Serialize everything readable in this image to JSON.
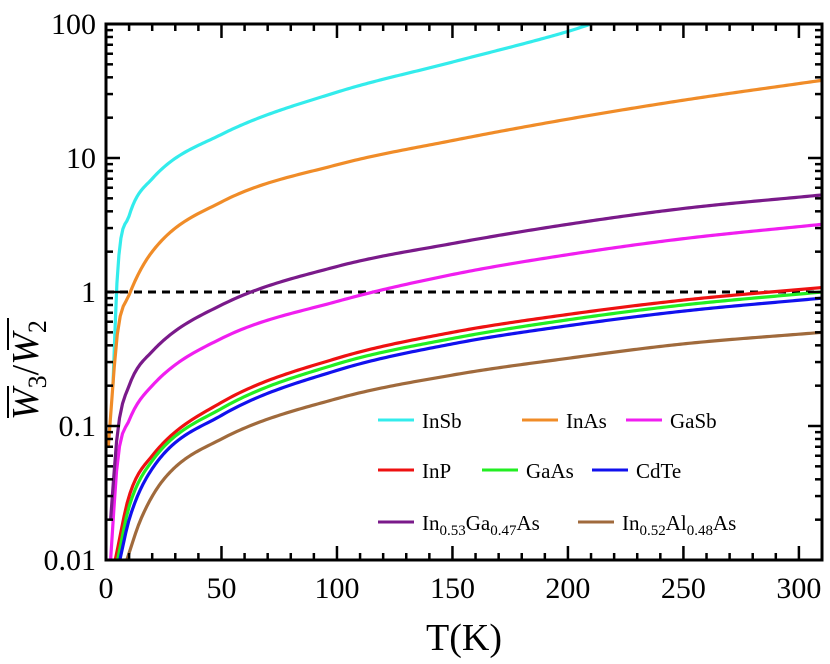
{
  "chart_data": {
    "type": "line",
    "scale": "log-y",
    "xlabel": "T(K)",
    "ylabel": {
      "numerator": "W",
      "numerator_sub": "3",
      "separator": "/",
      "denominator": "W",
      "denominator_sub": "2"
    },
    "xlim": [
      0,
      310
    ],
    "ylim": [
      0.01,
      100
    ],
    "x_ticks": [
      0,
      50,
      100,
      150,
      200,
      250,
      300
    ],
    "x_tick_labels": [
      "0",
      "50",
      "100",
      "150",
      "200",
      "250",
      "300"
    ],
    "y_ticks": [
      0.01,
      0.1,
      1,
      10,
      100
    ],
    "y_tick_labels": [
      "0.01",
      "0.1",
      "1",
      "10",
      "100"
    ],
    "reference_line": {
      "y": 1,
      "style": "dashed",
      "color": "#000000"
    },
    "legend_position": "bottom-right",
    "series": [
      {
        "name": "InSb",
        "color": "#33ecec",
        "points": [
          [
            3,
            0.2
          ],
          [
            5,
            1.4
          ],
          [
            10,
            3.7
          ],
          [
            20,
            7.0
          ],
          [
            50,
            15
          ],
          [
            100,
            31
          ],
          [
            150,
            52
          ],
          [
            200,
            88
          ],
          [
            210,
            100
          ]
        ]
      },
      {
        "name": "InAs",
        "color": "#f08c28",
        "points": [
          [
            1,
            0.07
          ],
          [
            5,
            0.5
          ],
          [
            10,
            0.95
          ],
          [
            20,
            2.0
          ],
          [
            50,
            4.7
          ],
          [
            100,
            8.9
          ],
          [
            150,
            13.5
          ],
          [
            200,
            19.5
          ],
          [
            250,
            27
          ],
          [
            310,
            38
          ]
        ]
      },
      {
        "name": "GaSb",
        "color": "#f01ef0",
        "points": [
          [
            2,
            0.01
          ],
          [
            5,
            0.055
          ],
          [
            10,
            0.11
          ],
          [
            20,
            0.2
          ],
          [
            50,
            0.45
          ],
          [
            100,
            0.85
          ],
          [
            150,
            1.35
          ],
          [
            200,
            1.9
          ],
          [
            250,
            2.5
          ],
          [
            310,
            3.2
          ]
        ]
      },
      {
        "name": "InP",
        "color": "#ee1111",
        "points": [
          [
            4,
            0.01
          ],
          [
            10,
            0.03
          ],
          [
            20,
            0.06
          ],
          [
            50,
            0.15
          ],
          [
            100,
            0.32
          ],
          [
            150,
            0.5
          ],
          [
            200,
            0.68
          ],
          [
            250,
            0.87
          ],
          [
            310,
            1.08
          ]
        ]
      },
      {
        "name": "GaAs",
        "color": "#22ee22",
        "points": [
          [
            5,
            0.01
          ],
          [
            10,
            0.025
          ],
          [
            20,
            0.055
          ],
          [
            50,
            0.135
          ],
          [
            100,
            0.29
          ],
          [
            150,
            0.45
          ],
          [
            200,
            0.62
          ],
          [
            250,
            0.8
          ],
          [
            310,
            1.0
          ]
        ]
      },
      {
        "name": "CdTe",
        "color": "#1111ee",
        "points": [
          [
            6,
            0.01
          ],
          [
            10,
            0.02
          ],
          [
            20,
            0.048
          ],
          [
            50,
            0.12
          ],
          [
            100,
            0.26
          ],
          [
            150,
            0.41
          ],
          [
            200,
            0.56
          ],
          [
            250,
            0.72
          ],
          [
            310,
            0.9
          ]
        ]
      },
      {
        "name": "In0.53Ga0.47As",
        "color": "#7a1a8a",
        "label": {
          "base": "In",
          "sub1": "0.53",
          "mid": "Ga",
          "sub2": "0.47",
          "end": "As"
        },
        "points": [
          [
            2,
            0.02
          ],
          [
            5,
            0.09
          ],
          [
            10,
            0.2
          ],
          [
            20,
            0.36
          ],
          [
            50,
            0.8
          ],
          [
            100,
            1.55
          ],
          [
            150,
            2.3
          ],
          [
            200,
            3.2
          ],
          [
            250,
            4.2
          ],
          [
            310,
            5.3
          ]
        ]
      },
      {
        "name": "In0.52Al0.48As",
        "color": "#a06a3c",
        "label": {
          "base": "In",
          "sub1": "0.52",
          "mid": "Al",
          "sub2": "0.48",
          "end": "As"
        },
        "points": [
          [
            9,
            0.01
          ],
          [
            15,
            0.02
          ],
          [
            25,
            0.04
          ],
          [
            50,
            0.08
          ],
          [
            100,
            0.16
          ],
          [
            150,
            0.24
          ],
          [
            200,
            0.32
          ],
          [
            250,
            0.41
          ],
          [
            310,
            0.5
          ]
        ]
      }
    ]
  }
}
